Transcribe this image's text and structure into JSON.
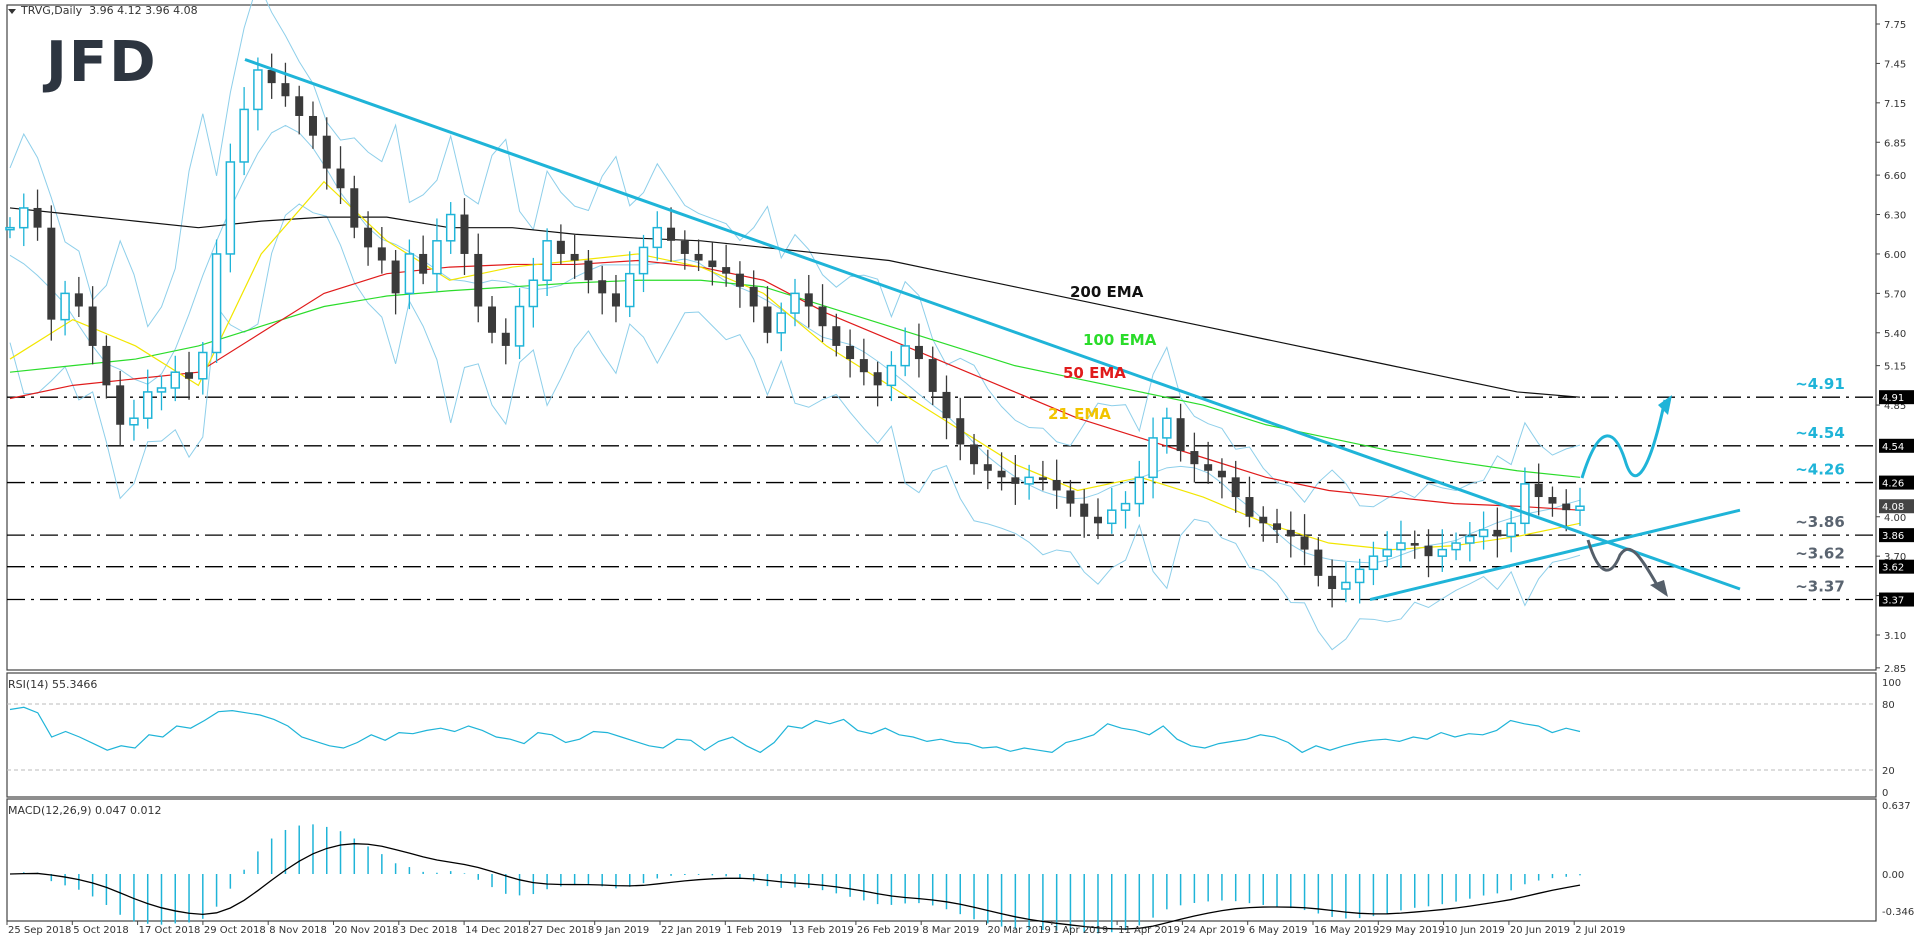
{
  "header": {
    "symbol": "TRVG,Daily",
    "ohlc": "3.96 4.12 3.96 4.08"
  },
  "logo": {
    "text": "JFD"
  },
  "colors": {
    "bull_candle": "#1fb4d8",
    "bear_candle": "#3a3a3a",
    "trendline": "#1fb4d8",
    "ema21": "#f2e600",
    "ema50": "#e01b1b",
    "ema100": "#2bdc2b",
    "ema200": "#111111",
    "bollinger": "#8ecfea",
    "rsi": "#1fb4d8",
    "macd_hist": "#1fb4d8",
    "macd_signal": "#000000",
    "level_label_up": "#1fb4d8",
    "level_label_down": "#5a6470",
    "arrow_down": "#555f6a"
  },
  "indicators": {
    "rsi_label": "RSI(14) 55.3466",
    "macd_label": "MACD(12,26,9) 0.047 0.012"
  },
  "annotations": {
    "ema200": "200 EMA",
    "ema100": "100 EMA",
    "ema50": "50 EMA",
    "ema21": "21 EMA"
  },
  "chart_data": {
    "type": "candlestick",
    "title": "TRVG, Daily",
    "last_bar": {
      "open": 3.96,
      "high": 4.12,
      "low": 3.96,
      "close": 4.08
    },
    "price_axis": {
      "ticks": [
        7.75,
        7.45,
        7.15,
        6.85,
        6.6,
        6.3,
        6.0,
        5.7,
        5.4,
        5.15,
        4.85,
        4.0,
        3.7,
        3.4,
        3.1,
        2.85
      ],
      "ylim": [
        2.85,
        7.75
      ]
    },
    "current_price_label": "4.08",
    "horizontal_levels": [
      {
        "value": 4.91,
        "label": "~4.91",
        "tag": "4.91",
        "style": "up"
      },
      {
        "value": 4.54,
        "label": "~4.54",
        "tag": "4.54",
        "style": "up"
      },
      {
        "value": 4.26,
        "label": "~4.26",
        "tag": "4.26",
        "style": "up"
      },
      {
        "value": 3.86,
        "label": "~3.86",
        "tag": "3.86",
        "style": "down"
      },
      {
        "value": 3.62,
        "label": "~3.62",
        "tag": "3.62",
        "style": "down"
      },
      {
        "value": 3.37,
        "label": "~3.37",
        "tag": "3.37",
        "style": "down"
      }
    ],
    "x_axis_labels": [
      "25 Sep 2018",
      "5 Oct 2018",
      "17 Oct 2018",
      "29 Oct 2018",
      "8 Nov 2018",
      "20 Nov 2018",
      "3 Dec 2018",
      "14 Dec 2018",
      "27 Dec 2018",
      "9 Jan 2019",
      "22 Jan 2019",
      "1 Feb 2019",
      "13 Feb 2019",
      "26 Feb 2019",
      "8 Mar 2019",
      "20 Mar 2019",
      "1 Apr 2019",
      "11 Apr 2019",
      "24 Apr 2019",
      "6 May 2019",
      "16 May 2019",
      "29 May 2019",
      "10 Jun 2019",
      "20 Jun 2019",
      "2 Jul 2019"
    ],
    "close_path": [
      6.2,
      6.35,
      6.2,
      5.5,
      5.7,
      5.6,
      5.3,
      5.0,
      4.7,
      4.75,
      4.95,
      4.98,
      5.1,
      5.05,
      5.25,
      6.0,
      6.7,
      7.1,
      7.4,
      7.3,
      7.2,
      7.05,
      6.9,
      6.65,
      6.5,
      6.2,
      6.05,
      5.95,
      5.7,
      6.0,
      5.85,
      6.1,
      6.3,
      6.0,
      5.6,
      5.4,
      5.3,
      5.6,
      5.8,
      6.1,
      6.0,
      5.95,
      5.8,
      5.7,
      5.6,
      5.85,
      6.05,
      6.2,
      6.1,
      6.0,
      5.95,
      5.9,
      5.85,
      5.75,
      5.6,
      5.4,
      5.55,
      5.7,
      5.6,
      5.45,
      5.3,
      5.2,
      5.1,
      5.0,
      5.15,
      5.3,
      5.2,
      4.95,
      4.75,
      4.55,
      4.4,
      4.35,
      4.3,
      4.25,
      4.3,
      4.28,
      4.2,
      4.1,
      4.0,
      3.95,
      4.05,
      4.1,
      4.3,
      4.6,
      4.75,
      4.5,
      4.4,
      4.35,
      4.3,
      4.15,
      4.0,
      3.95,
      3.9,
      3.85,
      3.75,
      3.55,
      3.45,
      3.5,
      3.6,
      3.7,
      3.75,
      3.8,
      3.78,
      3.7,
      3.75,
      3.8,
      3.85,
      3.9,
      3.85,
      3.95,
      4.25,
      4.15,
      4.1,
      4.05,
      4.08
    ],
    "series": [
      {
        "name": "200 EMA",
        "values": [
          6.35,
          6.3,
          6.25,
          6.2,
          6.25,
          6.28,
          6.28,
          6.2,
          6.2,
          6.15,
          6.12,
          6.1,
          6.05,
          6.0,
          5.95,
          5.85,
          5.75,
          5.65,
          5.55,
          5.45,
          5.35,
          5.25,
          5.15,
          5.05,
          4.95,
          4.91
        ]
      },
      {
        "name": "100 EMA",
        "values": [
          5.1,
          5.15,
          5.2,
          5.3,
          5.45,
          5.6,
          5.68,
          5.72,
          5.75,
          5.78,
          5.8,
          5.8,
          5.75,
          5.6,
          5.45,
          5.3,
          5.15,
          5.05,
          4.95,
          4.85,
          4.7,
          4.6,
          4.5,
          4.42,
          4.35,
          4.3
        ]
      },
      {
        "name": "50 EMA",
        "values": [
          4.9,
          5.0,
          5.05,
          5.1,
          5.4,
          5.7,
          5.85,
          5.9,
          5.92,
          5.92,
          5.95,
          5.9,
          5.8,
          5.55,
          5.35,
          5.15,
          4.95,
          4.75,
          4.6,
          4.45,
          4.3,
          4.2,
          4.15,
          4.1,
          4.08,
          4.05
        ]
      },
      {
        "name": "21 EMA",
        "values": [
          5.2,
          5.5,
          5.3,
          5.0,
          6.0,
          6.55,
          6.1,
          5.8,
          5.9,
          5.95,
          6.0,
          5.9,
          5.7,
          5.3,
          5.0,
          4.7,
          4.4,
          4.2,
          4.3,
          4.15,
          3.95,
          3.8,
          3.75,
          3.78,
          3.85,
          3.95
        ]
      }
    ],
    "trendlines": [
      {
        "name": "downtrend",
        "from": [
          "8 Nov 2018",
          7.48
        ],
        "to": [
          "beyond 2 Jul 2019",
          3.45
        ]
      },
      {
        "name": "uptrend",
        "from": [
          "29 May 2019",
          3.37
        ],
        "to": [
          "beyond 2 Jul 2019",
          4.05
        ]
      }
    ],
    "scenario_arrows": [
      {
        "direction": "up",
        "target": 4.91
      },
      {
        "direction": "down",
        "target": 3.37
      }
    ],
    "rsi": {
      "label": "RSI(14) 55.3466",
      "value": 55.3466,
      "ticks": [
        100,
        80,
        20,
        0
      ],
      "levels": [
        80,
        20
      ],
      "values": [
        75,
        77,
        72,
        50,
        55,
        50,
        44,
        38,
        42,
        40,
        52,
        50,
        60,
        58,
        65,
        73,
        74,
        72,
        70,
        66,
        60,
        50,
        46,
        42,
        40,
        45,
        52,
        47,
        54,
        53,
        56,
        58,
        55,
        60,
        56,
        50,
        48,
        44,
        54,
        52,
        45,
        48,
        55,
        54,
        50,
        46,
        42,
        40,
        48,
        47,
        38,
        46,
        50,
        42,
        36,
        45,
        60,
        58,
        65,
        62,
        66,
        56,
        53,
        58,
        52,
        50,
        46,
        48,
        45,
        44,
        40,
        41,
        37,
        40,
        38,
        36,
        45,
        48,
        52,
        62,
        58,
        56,
        52,
        60,
        48,
        42,
        40,
        44,
        46,
        48,
        52,
        50,
        45,
        36,
        42,
        38,
        42,
        45,
        47,
        48,
        46,
        50,
        48,
        54,
        50,
        53,
        52,
        56,
        65,
        62,
        60,
        54,
        58,
        55
      ]
    },
    "macd": {
      "label": "MACD(12,26,9) 0.047 0.012",
      "main": 0.047,
      "signal": 0.012,
      "ticks": [
        0.637,
        0.0,
        -0.346
      ],
      "ylim": [
        -0.346,
        0.637
      ]
    }
  }
}
